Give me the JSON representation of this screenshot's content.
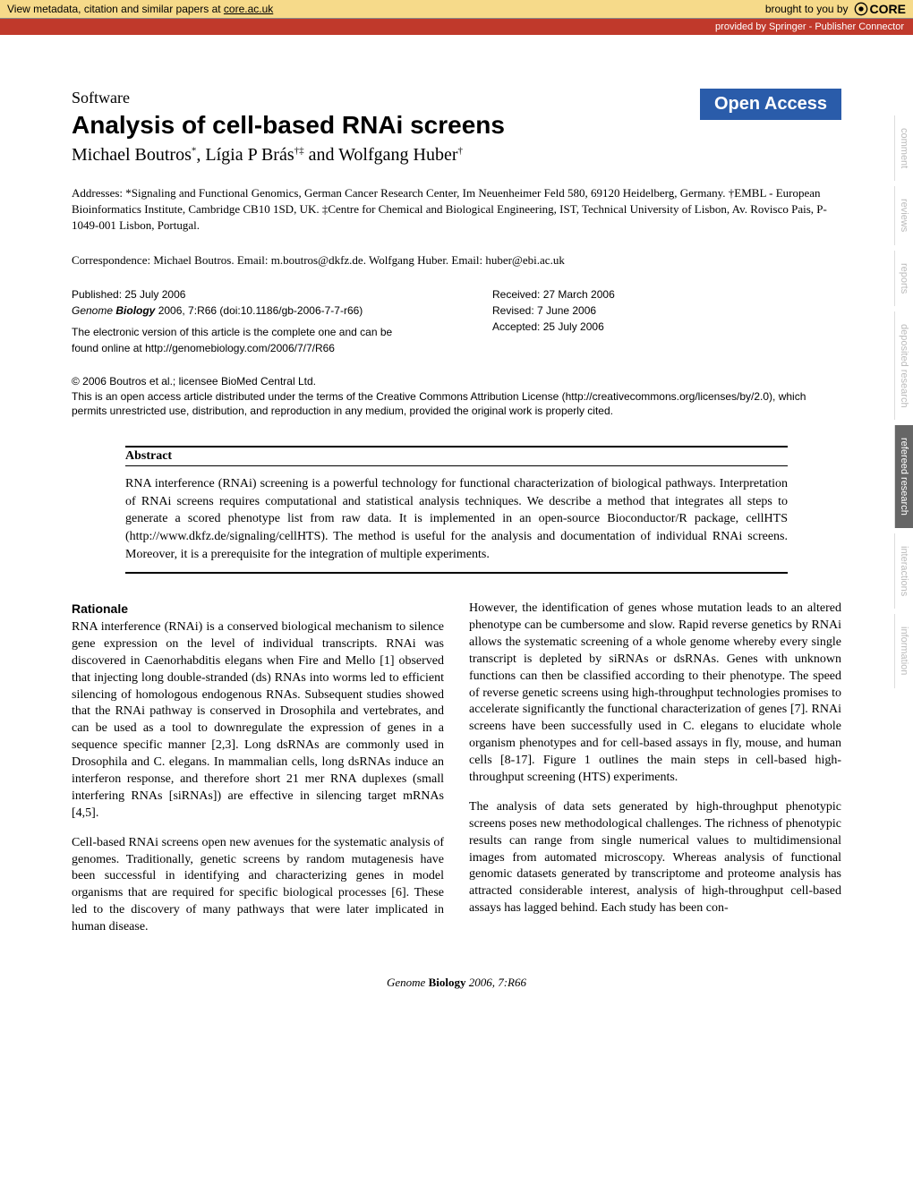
{
  "banner": {
    "metadata_text": "View metadata, citation and similar papers at ",
    "metadata_link": "core.ac.uk",
    "brought_by": "brought to you by",
    "core_label": "CORE",
    "provided_by": "provided by Springer - Publisher Connector"
  },
  "badge": {
    "open_access": "Open Access"
  },
  "header": {
    "section_label": "Software",
    "title": "Analysis of cell-based RNAi screens",
    "authors_html": "Michael Boutros*, Lígia P Brás†‡ and Wolfgang Huber†"
  },
  "addresses": "Addresses: *Signaling and Functional Genomics, German Cancer Research Center, Im Neuenheimer Feld 580, 69120 Heidelberg, Germany. †EMBL - European Bioinformatics Institute, Cambridge CB10 1SD, UK. ‡Centre for Chemical and Biological Engineering, IST, Technical University of Lisbon, Av. Rovisco Pais, P-1049-001 Lisbon, Portugal.",
  "correspondence": "Correspondence: Michael Boutros. Email: m.boutros@dkfz.de. Wolfgang Huber. Email: huber@ebi.ac.uk",
  "pub": {
    "published": "Published: 25 July 2006",
    "citation_prefix": "Genome ",
    "citation_bold": "Biology",
    "citation_rest": " 2006, 7:R66 (doi:10.1186/gb-2006-7-7-r66)",
    "electronic": "The electronic version of this article is the complete one and can be found online at http://genomebiology.com/2006/7/7/R66",
    "received": "Received: 27 March 2006",
    "revised": "Revised: 7 June 2006",
    "accepted": "Accepted: 25 July 2006"
  },
  "license": {
    "l1": "© 2006 Boutros et al.; licensee BioMed Central Ltd.",
    "l2": "This is an open access article distributed under the terms of the Creative Commons Attribution License (http://creativecommons.org/licenses/by/2.0), which permits unrestricted use, distribution, and reproduction in any medium, provided the original work is properly cited."
  },
  "abstract": {
    "heading": "Abstract",
    "text": "RNA interference (RNAi) screening is a powerful technology for functional characterization of biological pathways. Interpretation of RNAi screens requires computational and statistical analysis techniques. We describe a method that integrates all steps to generate a scored phenotype list from raw data. It is implemented in an open-source Bioconductor/R package, cellHTS (http://www.dkfz.de/signaling/cellHTS). The method is useful for the analysis and documentation of individual RNAi screens. Moreover, it is a prerequisite for the integration of multiple experiments."
  },
  "body": {
    "rationale_heading": "Rationale",
    "col1_p1": "RNA interference (RNAi) is a conserved biological mechanism to silence gene expression on the level of individual transcripts. RNAi was discovered in Caenorhabditis elegans when Fire and Mello [1] observed that injecting long double-stranded (ds) RNAs into worms led to efficient silencing of homologous endogenous RNAs. Subsequent studies showed that the RNAi pathway is conserved in Drosophila and vertebrates, and can be used as a tool to downregulate the expression of genes in a sequence specific manner [2,3]. Long dsRNAs are commonly used in Drosophila and C. elegans. In mammalian cells, long dsRNAs induce an interferon response, and therefore short 21 mer RNA duplexes (small interfering RNAs [siRNAs]) are effective in silencing target mRNAs [4,5].",
    "col1_p2": "Cell-based RNAi screens open new avenues for the systematic analysis of genomes. Traditionally, genetic screens by random mutagenesis have been successful in identifying and characterizing genes in model organisms that are required for specific biological processes [6]. These led to the discovery of many pathways that were later implicated in human disease.",
    "col2_p1": "However, the identification of genes whose mutation leads to an altered phenotype can be cumbersome and slow. Rapid reverse genetics by RNAi allows the systematic screening of a whole genome whereby every single transcript is depleted by siRNAs or dsRNAs. Genes with unknown functions can then be classified according to their phenotype. The speed of reverse genetic screens using high-throughput technologies promises to accelerate significantly the functional characterization of genes [7]. RNAi screens have been successfully used in C. elegans to elucidate whole organism phenotypes and for cell-based assays in fly, mouse, and human cells [8-17]. Figure 1 outlines the main steps in cell-based high-throughput screening (HTS) experiments.",
    "col2_p2": "The analysis of data sets generated by high-throughput phenotypic screens poses new methodological challenges. The richness of phenotypic results can range from single numerical values to multidimensional images from automated microscopy. Whereas analysis of functional genomic datasets generated by transcriptome and proteome analysis has attracted considerable interest, analysis of high-throughput cell-based assays has lagged behind. Each study has been con-"
  },
  "side_tabs": [
    "comment",
    "reviews",
    "reports",
    "deposited research",
    "refereed research",
    "interactions",
    "information"
  ],
  "side_tabs_active_index": 4,
  "footer": {
    "prefix": "Genome ",
    "bold": "Biology",
    "rest": " 2006, 7:R66"
  },
  "colors": {
    "banner_bg": "#f6da8a",
    "provided_bg": "#c0392b",
    "open_access_bg": "#2a5caa",
    "side_tab_inactive": "#bbbbbb",
    "side_tab_active_bg": "#666666"
  }
}
